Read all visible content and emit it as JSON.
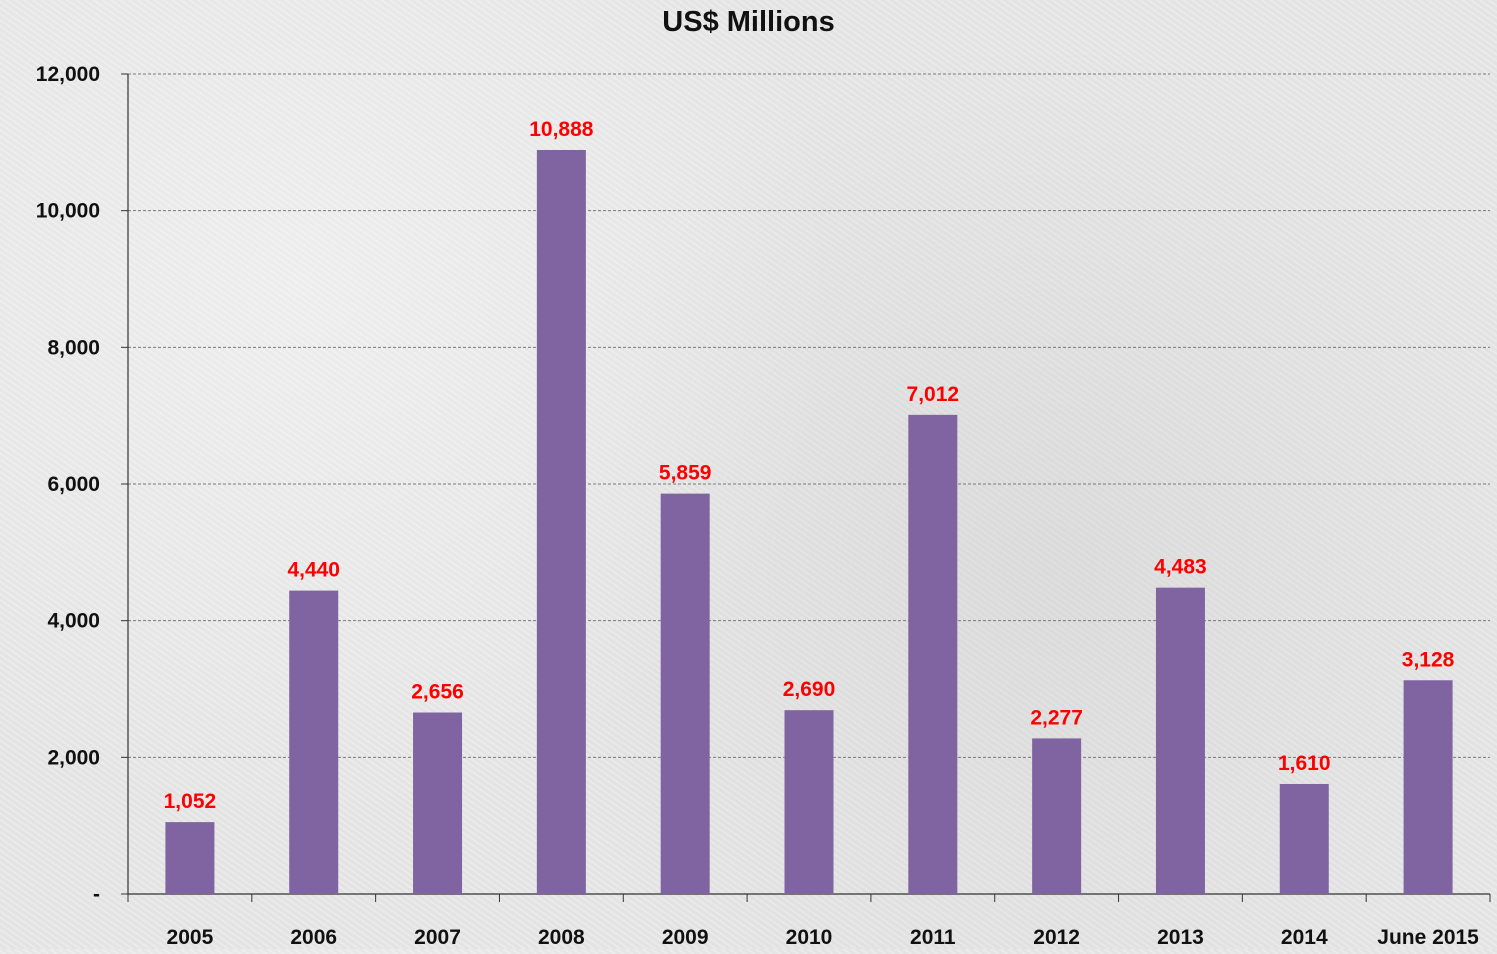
{
  "chart_data": {
    "type": "bar",
    "title": "US$ Millions",
    "categories": [
      "2005",
      "2006",
      "2007",
      "2008",
      "2009",
      "2010",
      "2011",
      "2012",
      "2013",
      "2014",
      "June 2015"
    ],
    "values": [
      1052,
      4440,
      2656,
      10888,
      5859,
      2690,
      7012,
      2277,
      4483,
      1610,
      3128
    ],
    "data_labels": [
      "1,052",
      "4,440",
      "2,656",
      "10,888",
      "5,859",
      "2,690",
      "7,012",
      "2,277",
      "4,483",
      "1,610",
      "3,128"
    ],
    "ylim": [
      0,
      12000
    ],
    "yticks": [
      0,
      2000,
      4000,
      6000,
      8000,
      10000,
      12000
    ],
    "ytick_labels": [
      "-",
      "2,000",
      "4,000",
      "6,000",
      "8,000",
      "10,000",
      "12,000"
    ],
    "grid": true,
    "bar_color": "#8064a2",
    "label_color": "#ff0000"
  }
}
